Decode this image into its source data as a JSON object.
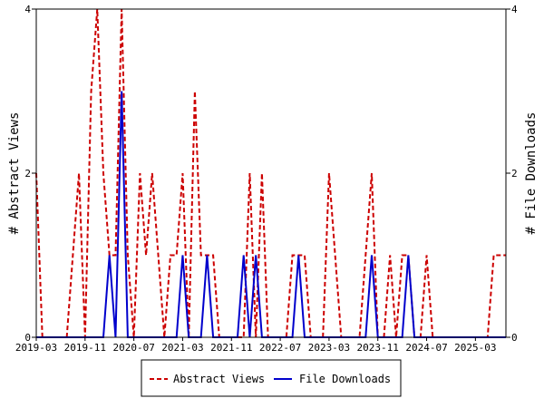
{
  "chart_data": {
    "type": "line",
    "x_dates": [
      "2019-03",
      "2019-04",
      "2019-05",
      "2019-06",
      "2019-07",
      "2019-08",
      "2019-09",
      "2019-10",
      "2019-11",
      "2019-12",
      "2020-01",
      "2020-02",
      "2020-03",
      "2020-04",
      "2020-05",
      "2020-06",
      "2020-07",
      "2020-08",
      "2020-09",
      "2020-10",
      "2020-11",
      "2020-12",
      "2021-01",
      "2021-02",
      "2021-03",
      "2021-04",
      "2021-05",
      "2021-06",
      "2021-07",
      "2021-08",
      "2021-09",
      "2021-10",
      "2021-11",
      "2021-12",
      "2022-01",
      "2022-02",
      "2022-03",
      "2022-04",
      "2022-05",
      "2022-06",
      "2022-07",
      "2022-08",
      "2022-09",
      "2022-10",
      "2022-11",
      "2022-12",
      "2023-01",
      "2023-02",
      "2023-03",
      "2023-04",
      "2023-05",
      "2023-06",
      "2023-07",
      "2023-08",
      "2023-09",
      "2023-10",
      "2023-11",
      "2023-12",
      "2024-01",
      "2024-02",
      "2024-03",
      "2024-04",
      "2024-05",
      "2024-06",
      "2024-07",
      "2024-08",
      "2024-09",
      "2024-10",
      "2024-11",
      "2024-12",
      "2025-01",
      "2025-02",
      "2025-03",
      "2025-04",
      "2025-05",
      "2025-06",
      "2025-07",
      "2025-08"
    ],
    "series": [
      {
        "name": "Abstract Views",
        "color": "#cc0000",
        "dash": "dashed",
        "axis": "left",
        "values": [
          2,
          0,
          0,
          0,
          0,
          0,
          1,
          2,
          0,
          3,
          4,
          2,
          1,
          1,
          4,
          1,
          0,
          2,
          1,
          2,
          1,
          0,
          1,
          1,
          2,
          0,
          3,
          1,
          1,
          1,
          0,
          0,
          0,
          0,
          0,
          2,
          0,
          2,
          0,
          0,
          0,
          0,
          1,
          1,
          1,
          0,
          0,
          0,
          2,
          1,
          0,
          0,
          0,
          0,
          1,
          2,
          0,
          0,
          1,
          0,
          1,
          1,
          0,
          0,
          1,
          0,
          0,
          0,
          0,
          0,
          0,
          0,
          0,
          0,
          0,
          1,
          1,
          1
        ]
      },
      {
        "name": "File Downloads",
        "color": "#0000cc",
        "dash": "solid",
        "axis": "right",
        "values": [
          0,
          0,
          0,
          0,
          0,
          0,
          0,
          0,
          0,
          0,
          0,
          0,
          1,
          0,
          3,
          0,
          0,
          0,
          0,
          0,
          0,
          0,
          0,
          0,
          1,
          0,
          0,
          0,
          1,
          0,
          0,
          0,
          0,
          0,
          1,
          0,
          1,
          0,
          0,
          0,
          0,
          0,
          0,
          1,
          0,
          0,
          0,
          0,
          0,
          0,
          0,
          0,
          0,
          0,
          0,
          1,
          0,
          0,
          0,
          0,
          0,
          1,
          0,
          0,
          0,
          0,
          0,
          0,
          0,
          0,
          0,
          0,
          0,
          0,
          0,
          0,
          0,
          0
        ]
      }
    ],
    "x_tick_labels": [
      "2019-03",
      "2019-11",
      "2020-07",
      "2021-03",
      "2021-11",
      "2022-07",
      "2023-03",
      "2023-11",
      "2024-07",
      "2025-03"
    ],
    "ylabel_left": "# Abstract Views",
    "ylabel_right": "# File Downloads",
    "ylim_left": [
      0,
      4
    ],
    "ylim_right": [
      0,
      4
    ],
    "y_ticks_left": [
      "0",
      "2",
      "4"
    ],
    "y_ticks_right": [
      "0",
      "2",
      "4"
    ],
    "legend": {
      "position": "bottom",
      "entries": [
        "Abstract Views",
        "File Downloads"
      ]
    },
    "grid": false
  }
}
